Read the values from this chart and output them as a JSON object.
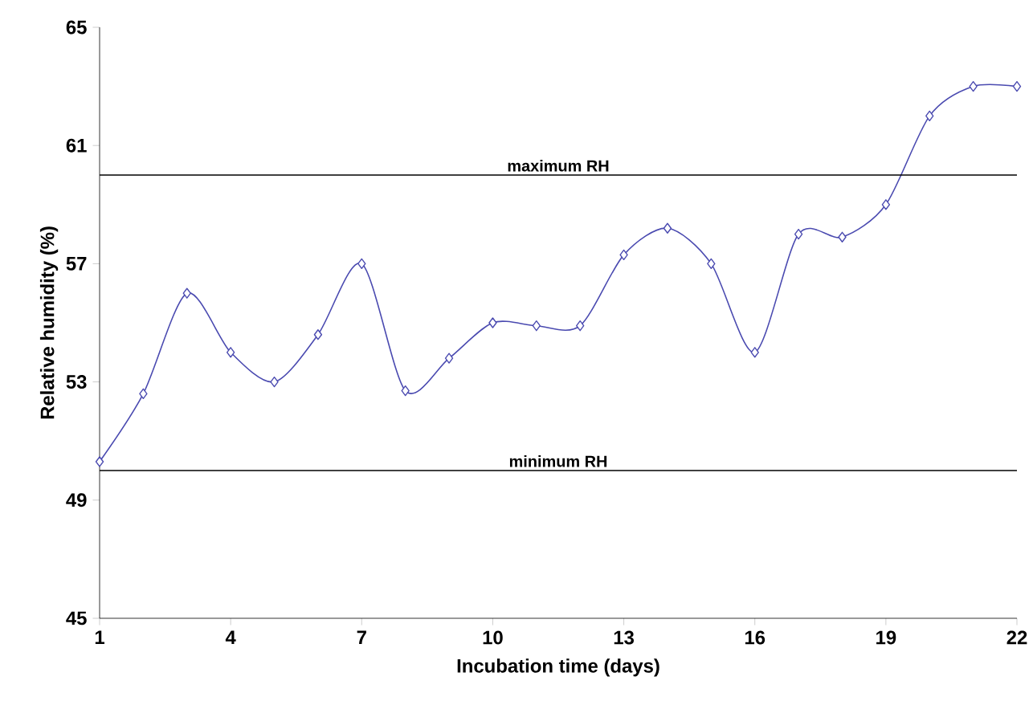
{
  "chart_data": {
    "type": "line",
    "xlabel": "Incubation time (days)",
    "ylabel": "Relative humidity (%)",
    "x": [
      1,
      2,
      3,
      4,
      5,
      6,
      7,
      8,
      9,
      10,
      11,
      12,
      13,
      14,
      15,
      16,
      17,
      18,
      19,
      20,
      21,
      22
    ],
    "series": [
      {
        "color": "#4a4ab0",
        "values": [
          50.3,
          52.6,
          56.0,
          54.0,
          53.0,
          54.6,
          57.0,
          52.7,
          53.8,
          55.0,
          54.9,
          54.9,
          57.3,
          58.2,
          57.0,
          54.0,
          58.0,
          57.9,
          59.0,
          62.0,
          63.0,
          63.0
        ]
      }
    ],
    "xlim": [
      1,
      22
    ],
    "xticks": [
      1,
      4,
      7,
      10,
      13,
      16,
      19,
      22
    ],
    "ylim": [
      45,
      65
    ],
    "yticks": [
      45,
      49,
      53,
      57,
      61,
      65
    ],
    "marker": "diamond",
    "grid": false,
    "ref_lines": [
      {
        "axis": "y",
        "value": 60,
        "label": "maximum RH",
        "color": "#000000"
      },
      {
        "axis": "y",
        "value": 50,
        "label": "minimum RH",
        "color": "#000000"
      }
    ]
  }
}
